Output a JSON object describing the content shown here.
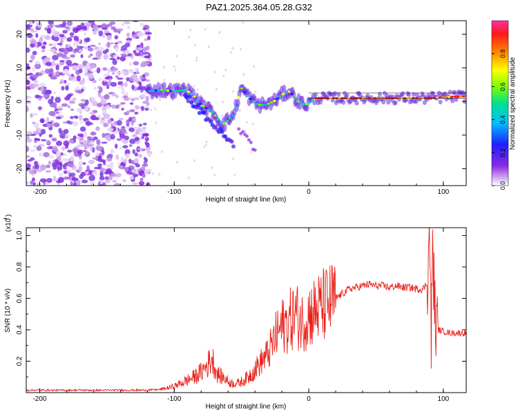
{
  "title": "PAZ1.2025.364.05.28.G32",
  "chart_data": [
    {
      "type": "heatmap",
      "title": "PAZ1.2025.364.05.28.G32",
      "xlabel": "Height of straight line (km)",
      "ylabel": "Frequency (Hz)",
      "xlim": [
        -210,
        117
      ],
      "ylim": [
        -25,
        24
      ],
      "xticks": [
        "-200",
        "-100",
        "0",
        "100"
      ],
      "yticks": [
        "20",
        "10",
        "0",
        "-10",
        "-20"
      ],
      "colorbar": {
        "label": "Normalized spectral amplitude",
        "range": [
          0.0,
          1.0
        ],
        "ticks": [
          "0.0",
          "0.2",
          "0.4",
          "0.6",
          "0.8"
        ],
        "colors": [
          "#ffffff",
          "#d8b6f2",
          "#8a2be2",
          "#1f1fff",
          "#00c0ff",
          "#00e090",
          "#7cff00",
          "#ffff00",
          "#ff9000",
          "#ff1818",
          "#ff30a0"
        ]
      },
      "ridge": {
        "x": [
          -120,
          -110,
          -100,
          -92,
          -86,
          -80,
          -72,
          -64,
          -56,
          -50,
          -44,
          -38,
          -32,
          -26,
          -20,
          -14,
          -8,
          -2,
          5,
          15,
          30,
          50,
          70,
          90,
          110,
          117
        ],
        "y": [
          3,
          3.5,
          3,
          3.5,
          2,
          -1,
          -3,
          -7,
          -4,
          4,
          1,
          -1,
          -1,
          0,
          2,
          3,
          0,
          -1,
          1,
          1,
          1,
          1,
          1,
          1,
          1.5,
          1.5
        ]
      }
    },
    {
      "type": "line",
      "xlabel": "Height of straight line (km)",
      "ylabel": "SNR (10 * v/v)",
      "exponent_label": "(x10",
      "exponent_power": "4",
      "exponent_close": ")",
      "xlim": [
        -210,
        117
      ],
      "ylim": [
        0,
        1.05
      ],
      "xticks": [
        "-200",
        "-100",
        "0",
        "100"
      ],
      "yticks": [
        "0.2",
        "0.4",
        "0.6",
        "0.8",
        "1.0"
      ],
      "series": [
        {
          "name": "SNR",
          "color": "#e8201a",
          "x": [
            -210,
            -200,
            -190,
            -180,
            -170,
            -160,
            -150,
            -140,
            -130,
            -120,
            -110,
            -105,
            -100,
            -95,
            -90,
            -85,
            -80,
            -75,
            -72,
            -70,
            -68,
            -65,
            -62,
            -60,
            -58,
            -55,
            -52,
            -50,
            -48,
            -45,
            -40,
            -35,
            -30,
            -25,
            -20,
            -15,
            -10,
            -5,
            0,
            5,
            10,
            15,
            20,
            25,
            30,
            35,
            40,
            45,
            50,
            55,
            60,
            65,
            70,
            75,
            80,
            85,
            88,
            90,
            91,
            92,
            94,
            96,
            100,
            105,
            110,
            117
          ],
          "y": [
            0.015,
            0.016,
            0.015,
            0.015,
            0.016,
            0.015,
            0.015,
            0.016,
            0.015,
            0.016,
            0.02,
            0.03,
            0.04,
            0.06,
            0.08,
            0.1,
            0.13,
            0.18,
            0.22,
            0.17,
            0.12,
            0.1,
            0.09,
            0.07,
            0.06,
            0.06,
            0.06,
            0.07,
            0.08,
            0.1,
            0.15,
            0.2,
            0.25,
            0.35,
            0.42,
            0.45,
            0.5,
            0.45,
            0.5,
            0.52,
            0.55,
            0.57,
            0.6,
            0.63,
            0.66,
            0.67,
            0.68,
            0.69,
            0.68,
            0.68,
            0.67,
            0.68,
            0.67,
            0.67,
            0.66,
            0.66,
            0.7,
            1.02,
            0.25,
            0.95,
            0.45,
            0.4,
            0.39,
            0.38,
            0.38,
            0.38
          ]
        }
      ]
    }
  ]
}
